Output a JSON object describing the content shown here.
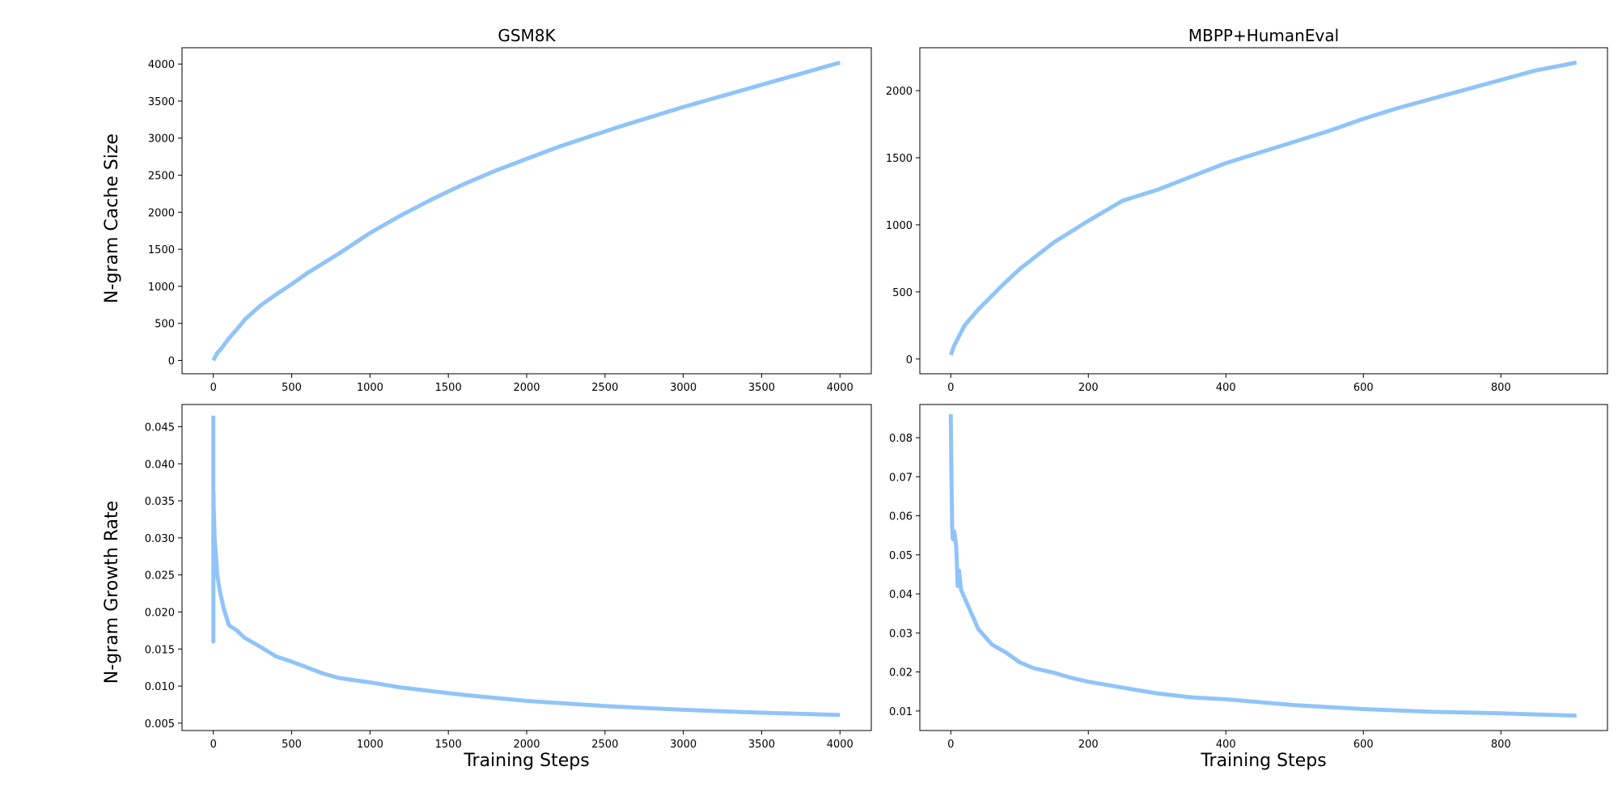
{
  "figure": {
    "row_labels": [
      "N-gram Cache Size",
      "N-gram Growth Rate"
    ],
    "xlabel": "Training Steps",
    "line_color": "#90c4f9"
  },
  "chart_data": [
    {
      "type": "line",
      "title": "GSM8K",
      "xlabel": "",
      "ylabel": "N-gram Cache Size",
      "xlim": [
        -200,
        4200
      ],
      "ylim": [
        -180,
        4220
      ],
      "xticks": [
        0,
        500,
        1000,
        1500,
        2000,
        2500,
        3000,
        3500,
        4000
      ],
      "yticks": [
        0,
        500,
        1000,
        1500,
        2000,
        2500,
        3000,
        3500,
        4000
      ],
      "xtick_labels": [
        "0",
        "500",
        "1000",
        "1500",
        "2000",
        "2500",
        "3000",
        "3500",
        "4000"
      ],
      "ytick_labels": [
        "0",
        "500",
        "1000",
        "1500",
        "2000",
        "2500",
        "3000",
        "3500",
        "4000"
      ],
      "grid": false,
      "series": [
        {
          "x": [
            0,
            25,
            50,
            100,
            150,
            200,
            300,
            400,
            500,
            600,
            800,
            1000,
            1200,
            1400,
            1600,
            1800,
            2000,
            2200,
            2400,
            2600,
            2800,
            3000,
            3200,
            3400,
            3600,
            3800,
            4000
          ],
          "y": [
            0,
            100,
            160,
            300,
            420,
            550,
            740,
            890,
            1030,
            1180,
            1440,
            1720,
            1960,
            2180,
            2380,
            2560,
            2720,
            2880,
            3020,
            3160,
            3290,
            3420,
            3540,
            3660,
            3780,
            3900,
            4020
          ]
        }
      ]
    },
    {
      "type": "line",
      "title": "MBPP+HumanEval",
      "xlabel": "",
      "ylabel": "",
      "xlim": [
        -45,
        955
      ],
      "ylim": [
        -110,
        2320
      ],
      "xticks": [
        0,
        200,
        400,
        600,
        800
      ],
      "yticks": [
        0,
        500,
        1000,
        1500,
        2000
      ],
      "xtick_labels": [
        "0",
        "200",
        "400",
        "600",
        "800"
      ],
      "ytick_labels": [
        "0",
        "500",
        "1000",
        "1500",
        "2000"
      ],
      "grid": false,
      "series": [
        {
          "x": [
            0,
            5,
            10,
            15,
            20,
            30,
            40,
            50,
            75,
            100,
            125,
            150,
            175,
            200,
            250,
            300,
            350,
            400,
            450,
            500,
            550,
            600,
            650,
            700,
            750,
            800,
            850,
            910
          ],
          "y": [
            30,
            100,
            150,
            200,
            250,
            310,
            370,
            420,
            550,
            670,
            770,
            870,
            950,
            1030,
            1180,
            1260,
            1360,
            1460,
            1540,
            1620,
            1700,
            1790,
            1870,
            1940,
            2010,
            2080,
            2150,
            2210
          ]
        }
      ]
    },
    {
      "type": "line",
      "title": "",
      "xlabel": "Training Steps",
      "ylabel": "N-gram Growth Rate",
      "xlim": [
        -200,
        4200
      ],
      "ylim": [
        0.004,
        0.048
      ],
      "xticks": [
        0,
        500,
        1000,
        1500,
        2000,
        2500,
        3000,
        3500,
        4000
      ],
      "yticks": [
        0.005,
        0.01,
        0.015,
        0.02,
        0.025,
        0.03,
        0.035,
        0.04,
        0.045
      ],
      "xtick_labels": [
        "0",
        "500",
        "1000",
        "1500",
        "2000",
        "2500",
        "3000",
        "3500",
        "4000"
      ],
      "ytick_labels": [
        "0.005",
        "0.010",
        "0.015",
        "0.020",
        "0.025",
        "0.030",
        "0.035",
        "0.040",
        "0.045"
      ],
      "grid": false,
      "series": [
        {
          "x": [
            0,
            0,
            1,
            2,
            4,
            8,
            15,
            25,
            40,
            60,
            80,
            100,
            150,
            200,
            300,
            400,
            500,
            600,
            700,
            800,
            1000,
            1200,
            1400,
            1600,
            2000,
            2500,
            3000,
            3500,
            4000
          ],
          "y": [
            0.0465,
            0.016,
            0.036,
            0.034,
            0.033,
            0.03,
            0.028,
            0.025,
            0.023,
            0.021,
            0.0195,
            0.0182,
            0.0175,
            0.0165,
            0.0153,
            0.014,
            0.0133,
            0.0125,
            0.0117,
            0.0111,
            0.0105,
            0.0098,
            0.0093,
            0.0088,
            0.008,
            0.0073,
            0.0068,
            0.0064,
            0.0061
          ]
        }
      ]
    },
    {
      "type": "line",
      "title": "",
      "xlabel": "Training Steps",
      "ylabel": "",
      "xlim": [
        -45,
        955
      ],
      "ylim": [
        0.005,
        0.0885
      ],
      "xticks": [
        0,
        200,
        400,
        600,
        800
      ],
      "yticks": [
        0.01,
        0.02,
        0.03,
        0.04,
        0.05,
        0.06,
        0.07,
        0.08
      ],
      "xtick_labels": [
        "0",
        "200",
        "400",
        "600",
        "800"
      ],
      "ytick_labels": [
        "0.01",
        "0.02",
        "0.03",
        "0.04",
        "0.05",
        "0.06",
        "0.07",
        "0.08"
      ],
      "grid": false,
      "series": [
        {
          "x": [
            0,
            1,
            2,
            3,
            5,
            8,
            10,
            12,
            15,
            20,
            25,
            30,
            40,
            50,
            60,
            80,
            100,
            120,
            150,
            175,
            200,
            250,
            300,
            350,
            400,
            500,
            600,
            700,
            800,
            910
          ],
          "y": [
            0.086,
            0.07,
            0.057,
            0.054,
            0.056,
            0.052,
            0.042,
            0.046,
            0.041,
            0.039,
            0.037,
            0.035,
            0.031,
            0.029,
            0.027,
            0.025,
            0.0225,
            0.021,
            0.0198,
            0.0185,
            0.0175,
            0.016,
            0.0145,
            0.0135,
            0.013,
            0.0115,
            0.0105,
            0.0098,
            0.0094,
            0.0088
          ]
        }
      ]
    }
  ]
}
